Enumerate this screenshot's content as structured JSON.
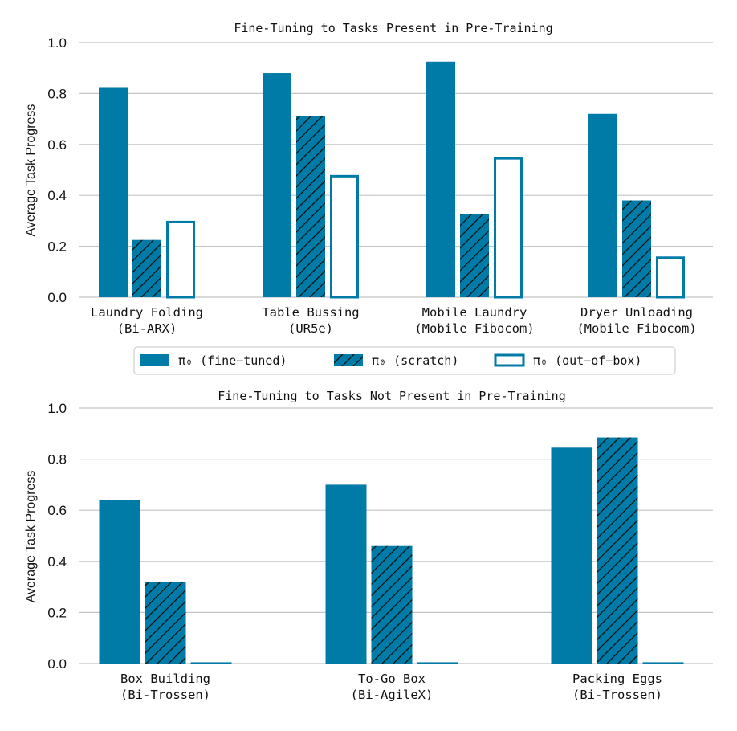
{
  "colors": {
    "primary": "#007ba7",
    "hatch": "#111111"
  },
  "legend": {
    "items": [
      {
        "style": "solid",
        "label": "π₀ (fine−tuned)"
      },
      {
        "style": "hatch",
        "label": "π₀ (scratch)"
      },
      {
        "style": "outline",
        "label": "π₀ (out−of−box)"
      }
    ]
  },
  "chart_data": [
    {
      "type": "bar",
      "title": "Fine-Tuning to Tasks Present in Pre-Training",
      "ylabel": "Average Task Progress",
      "ylim": [
        0,
        1.0
      ],
      "yticks": [
        "0.0",
        "0.2",
        "0.4",
        "0.6",
        "0.8",
        "1.0"
      ],
      "categories": [
        [
          "Laundry Folding",
          "(Bi-ARX)"
        ],
        [
          "Table Bussing",
          "(UR5e)"
        ],
        [
          "Mobile Laundry",
          "(Mobile Fibocom)"
        ],
        [
          "Dryer Unloading",
          "(Mobile Fibocom)"
        ]
      ],
      "series": [
        {
          "name": "π₀ (fine−tuned)",
          "style": "solid",
          "values": [
            0.825,
            0.88,
            0.925,
            0.72
          ]
        },
        {
          "name": "π₀ (scratch)",
          "style": "hatch",
          "values": [
            0.225,
            0.71,
            0.325,
            0.38
          ]
        },
        {
          "name": "π₀ (out−of−box)",
          "style": "outline",
          "values": [
            0.3,
            0.48,
            0.55,
            0.16
          ]
        }
      ]
    },
    {
      "type": "bar",
      "title": "Fine-Tuning to Tasks Not Present in Pre-Training",
      "ylabel": "Average Task Progress",
      "ylim": [
        0,
        1.0
      ],
      "yticks": [
        "0.0",
        "0.2",
        "0.4",
        "0.6",
        "0.8",
        "1.0"
      ],
      "categories": [
        [
          "Box Building",
          "(Bi-Trossen)"
        ],
        [
          "To-Go Box",
          "(Bi-AgileX)"
        ],
        [
          "Packing Eggs",
          "(Bi-Trossen)"
        ]
      ],
      "series": [
        {
          "name": "π₀ (fine−tuned)",
          "style": "solid",
          "values": [
            0.64,
            0.7,
            0.845
          ]
        },
        {
          "name": "π₀ (scratch)",
          "style": "hatch",
          "values": [
            0.32,
            0.46,
            0.885
          ]
        },
        {
          "name": "π₀ (out−of−box)",
          "style": "solid",
          "values": [
            0.005,
            0.005,
            0.005
          ]
        }
      ]
    }
  ]
}
